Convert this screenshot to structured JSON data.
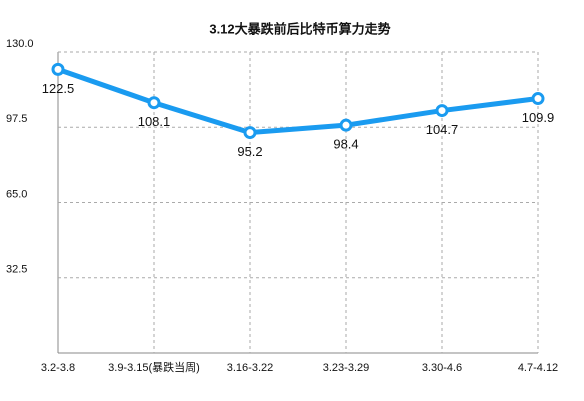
{
  "chart_data": {
    "type": "line",
    "title": "3.12大暴跌前后比特币算力走势",
    "categories": [
      "3.2-3.8",
      "3.9-3.15(暴跌当周)",
      "3.16-3.22",
      "3.23-3.29",
      "3.30-4.6",
      "4.7-4.12"
    ],
    "values": [
      122.5,
      108.1,
      95.2,
      98.4,
      104.7,
      109.9
    ],
    "color": "#1a9bf0",
    "ylim": [
      0,
      130
    ],
    "yticks": [
      32.5,
      {
        "value": 65,
        "label": "65.0"
      },
      97.5,
      {
        "value": 130,
        "label": "130.0"
      }
    ],
    "grid": true
  }
}
